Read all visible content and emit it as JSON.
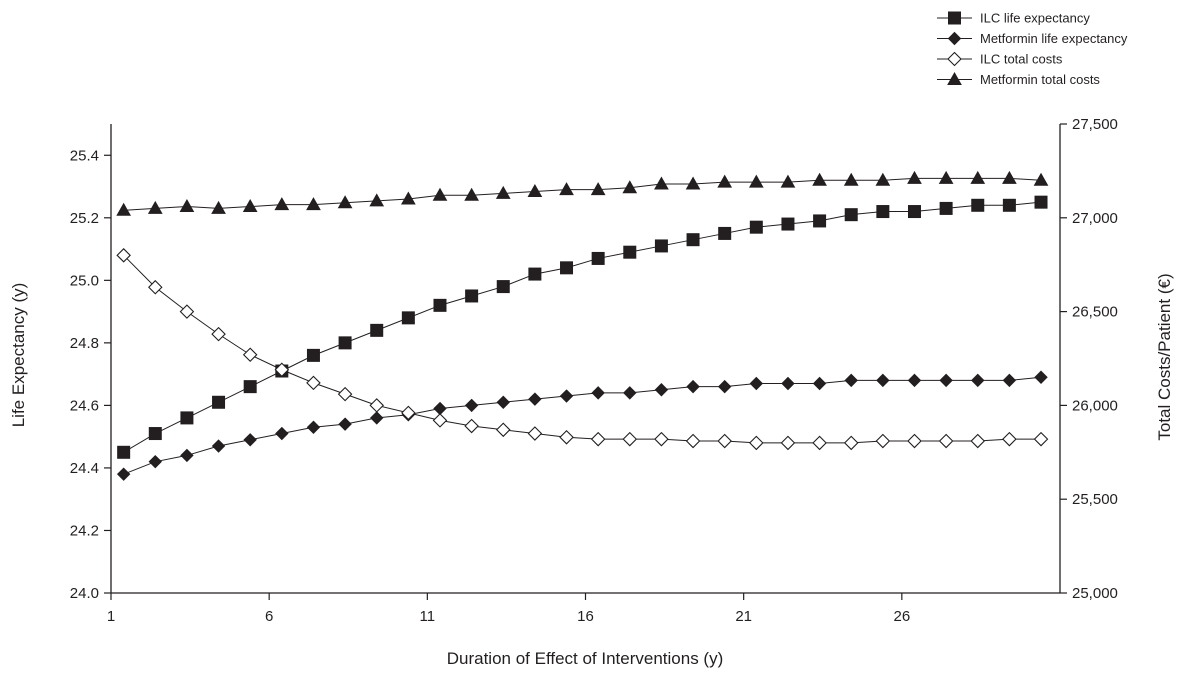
{
  "chart_data": {
    "type": "line",
    "xlabel": "Duration of Effect of Interventions (y)",
    "ylabel_left": "Life Expectancy (y)",
    "ylabel_right": "Total Costs/Patient (€)",
    "x_ticks": [
      1,
      6,
      11,
      16,
      21,
      26
    ],
    "xlim": [
      1,
      31
    ],
    "ylim_left": [
      24.0,
      25.5
    ],
    "y_ticks_left": [
      24.0,
      24.2,
      24.4,
      24.6,
      24.8,
      25.0,
      25.2,
      25.4
    ],
    "ylim_right": [
      25000,
      27500
    ],
    "y_ticks_right": [
      25000,
      25500,
      26000,
      26500,
      27000,
      27500
    ],
    "y_tick_labels_right": [
      "25,000",
      "25,500",
      "26,000",
      "26,500",
      "27,000",
      "27,500"
    ],
    "x": [
      1.4,
      2.4,
      3.4,
      4.4,
      5.4,
      6.4,
      7.4,
      8.4,
      9.4,
      10.4,
      11.4,
      12.4,
      13.4,
      14.4,
      15.4,
      16.4,
      17.4,
      18.4,
      19.4,
      20.4,
      21.4,
      22.4,
      23.4,
      24.4,
      25.4,
      26.4,
      27.4,
      28.4,
      29.4,
      30.4
    ],
    "legend_position": "top-right",
    "series": [
      {
        "name": "ILC life expectancy",
        "axis": "left",
        "marker": "square-filled",
        "values": [
          24.45,
          24.51,
          24.56,
          24.61,
          24.66,
          24.71,
          24.76,
          24.8,
          24.84,
          24.88,
          24.92,
          24.95,
          24.98,
          25.02,
          25.04,
          25.07,
          25.09,
          25.11,
          25.13,
          25.15,
          25.17,
          25.18,
          25.19,
          25.21,
          25.22,
          25.22,
          25.23,
          25.24,
          25.24,
          25.25
        ]
      },
      {
        "name": "Metformin life expectancy",
        "axis": "left",
        "marker": "diamond-filled",
        "values": [
          24.38,
          24.42,
          24.44,
          24.47,
          24.49,
          24.51,
          24.53,
          24.54,
          24.56,
          24.57,
          24.59,
          24.6,
          24.61,
          24.62,
          24.63,
          24.64,
          24.64,
          24.65,
          24.66,
          24.66,
          24.67,
          24.67,
          24.67,
          24.68,
          24.68,
          24.68,
          24.68,
          24.68,
          24.68,
          24.69
        ]
      },
      {
        "name": "ILC total costs",
        "axis": "right",
        "marker": "diamond-open",
        "values": [
          26800,
          26630,
          26500,
          26380,
          26270,
          26190,
          26120,
          26060,
          26000,
          25960,
          25920,
          25890,
          25870,
          25850,
          25830,
          25820,
          25820,
          25820,
          25810,
          25810,
          25800,
          25800,
          25800,
          25800,
          25810,
          25810,
          25810,
          25810,
          25820,
          25820
        ]
      },
      {
        "name": "Metformin total costs",
        "axis": "right",
        "marker": "triangle-filled",
        "values": [
          27040,
          27050,
          27060,
          27050,
          27060,
          27070,
          27070,
          27080,
          27090,
          27100,
          27120,
          27120,
          27130,
          27140,
          27150,
          27150,
          27160,
          27180,
          27180,
          27190,
          27190,
          27190,
          27200,
          27200,
          27200,
          27210,
          27210,
          27210,
          27210,
          27200
        ]
      }
    ]
  }
}
